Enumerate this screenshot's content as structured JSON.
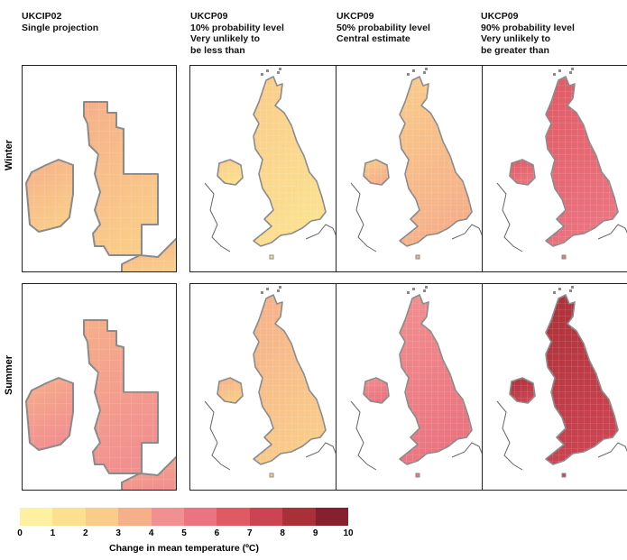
{
  "columns": [
    {
      "lines": [
        "UKCIP02",
        "Single projection"
      ]
    },
    {
      "lines": [
        "UKCP09",
        "10% probability level",
        "Very unlikely to",
        "be less than"
      ]
    },
    {
      "lines": [
        "UKCP09",
        "50% probability level",
        "Central estimate"
      ]
    },
    {
      "lines": [
        "UKCP09",
        "90% probability level",
        "Very unlikely to",
        "be greater than"
      ]
    }
  ],
  "rows": [
    {
      "label": "Winter"
    },
    {
      "label": "Summer"
    }
  ],
  "legend": {
    "title": "Change in mean temperature (ºC)",
    "ticks": [
      "0",
      "1",
      "2",
      "3",
      "4",
      "5",
      "6",
      "7",
      "8",
      "9",
      "10"
    ],
    "colors": [
      "#fdf0a0",
      "#fbe090",
      "#f9cc8a",
      "#f5b08a",
      "#f19090",
      "#ea7480",
      "#e05a64",
      "#cc4452",
      "#aa3038",
      "#86202e"
    ]
  },
  "map_fill": {
    "winter": {
      "ukcip02": [
        "#f9cc8a",
        "#f5b08a"
      ],
      "p10": [
        "#fbe090",
        "#f9cc8a"
      ],
      "p50": [
        "#f5b08a",
        "#f9cc8a"
      ],
      "p90": [
        "#ea7480",
        "#e05a64"
      ]
    },
    "summer": {
      "ukcip02": [
        "#f19090",
        "#f5b08a"
      ],
      "p10": [
        "#f9cc8a",
        "#f5b08a"
      ],
      "p50": [
        "#ea7480",
        "#f19090"
      ],
      "p90": [
        "#cc4452",
        "#aa3038"
      ]
    }
  }
}
